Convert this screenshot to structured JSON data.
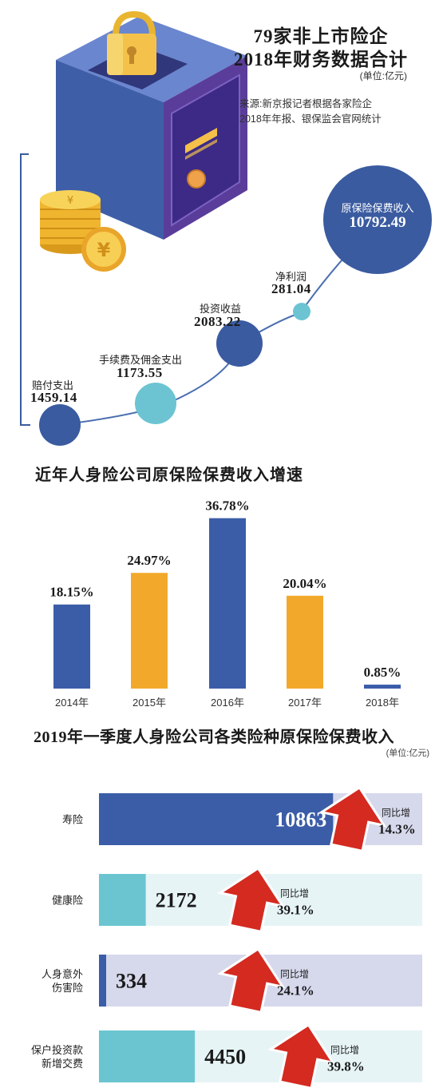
{
  "summary": {
    "title_line1": "79家非上市险企",
    "title_line2": "2018年财务数据合计",
    "unit": "(单位:亿元)",
    "source_line1": "来源:新京报记者根据各家险企",
    "source_line2": "2018年年报、银保监会官网统计",
    "items": [
      {
        "label": "赔付支出",
        "value": "1459.14"
      },
      {
        "label": "手续费及佣金支出",
        "value": "1173.55"
      },
      {
        "label": "投资收益",
        "value": "2083.22"
      },
      {
        "label": "净利润",
        "value": "281.04"
      },
      {
        "label": "原保险保费收入",
        "value": "10792.49"
      }
    ],
    "colors": {
      "dark_blue": "#3a5ba0",
      "light_teal": "#6cc4d2",
      "line": "#4a6fb0"
    }
  },
  "chart_data": [
    {
      "type": "bar",
      "title": "近年人身险公司原保险保费收入增速",
      "categories": [
        "2014年",
        "2015年",
        "2016年",
        "2017年",
        "2018年"
      ],
      "values": [
        18.15,
        24.97,
        36.78,
        20.04,
        0.85
      ],
      "value_labels": [
        "18.15%",
        "24.97%",
        "36.78%",
        "20.04%",
        "0.85%"
      ],
      "colors": [
        "#3b5da8",
        "#f2a92b",
        "#3b5da8",
        "#f2a92b",
        "#3b5da8"
      ],
      "ylim": [
        0,
        40
      ],
      "grid": false
    },
    {
      "type": "bar",
      "orientation": "horizontal",
      "title": "2019年一季度人身险公司各类险种原保险保费收入",
      "unit": "(单位:亿元)",
      "categories": [
        "寿险",
        "健康险",
        "人身意外伤害险",
        "保户投资款新增交费"
      ],
      "category_lines": [
        [
          "寿险"
        ],
        [
          "健康险"
        ],
        [
          "人身意外",
          "伤害险"
        ],
        [
          "保户投资款",
          "新增交费"
        ]
      ],
      "values": [
        10863,
        2172,
        334,
        4450
      ],
      "growth_label": "同比增",
      "growth": [
        "14.3%",
        "39.1%",
        "24.1%",
        "39.8%"
      ],
      "colors": {
        "bar_dark": "#3b5da8",
        "bar_teal": "#6ac5d1",
        "track_lavender": "#d6d8ec",
        "track_light": "#e6f4f6",
        "arrow": "#d42a20"
      },
      "xlim": [
        0,
        15000
      ]
    }
  ]
}
